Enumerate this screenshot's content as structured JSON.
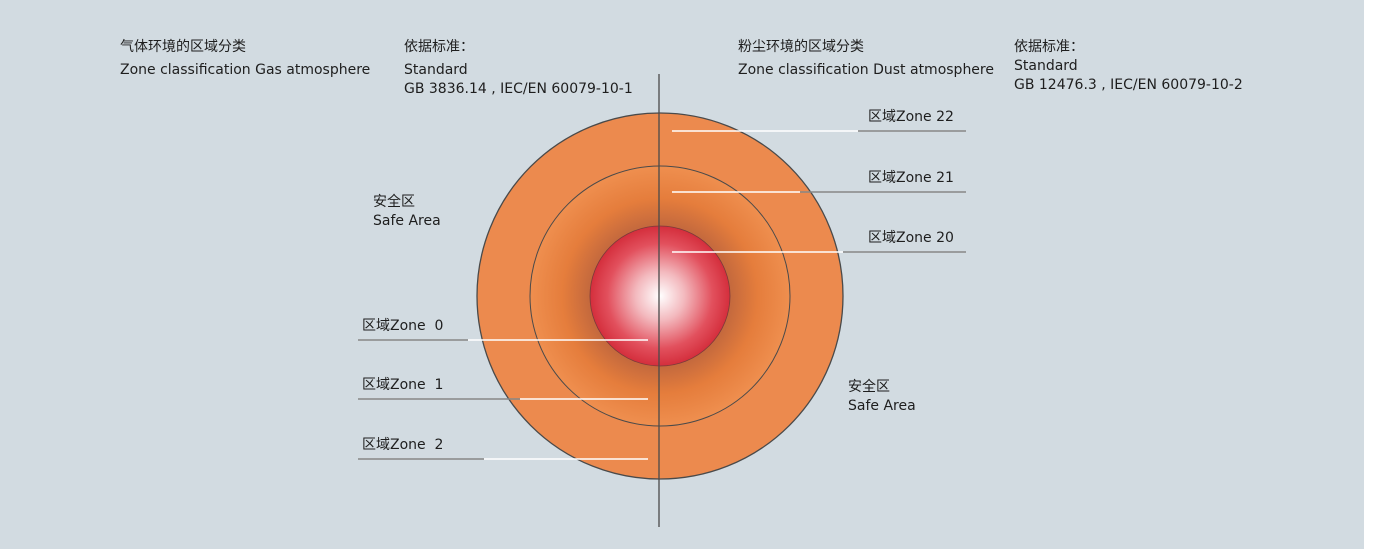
{
  "gas": {
    "heading_cn": "气体环境的区域分类",
    "heading_en": "Zone classification Gas atmosphere",
    "standard_label": "依据标准：",
    "standard_en": "Standard",
    "standard_codes": "GB 3836.14 , IEC/EN 60079-10-1",
    "safe_area_cn": "安全区",
    "safe_area_en": "Safe Area",
    "zones": [
      "区域Zone  0",
      "区域Zone  1",
      "区域Zone  2"
    ]
  },
  "dust": {
    "heading_cn": "粉尘环境的区域分类",
    "heading_en": "Zone classification Dust atmosphere",
    "standard_label": "依据标准：",
    "standard_en": "Standard",
    "standard_codes": "GB 12476.3 , IEC/EN 60079-10-2",
    "safe_area_cn": "安全区",
    "safe_area_en": "Safe Area",
    "zones": [
      "区域Zone 22",
      "区域Zone 21",
      "区域Zone 20"
    ]
  },
  "colors": {
    "background": "#d2dbe1",
    "outer_zone": "#ec8a4e",
    "middle_zone": "#ee8a45",
    "inner_zone_edge": "#d42e3c",
    "inner_zone_center": "#ffffff",
    "line": "#4a4a4a"
  }
}
